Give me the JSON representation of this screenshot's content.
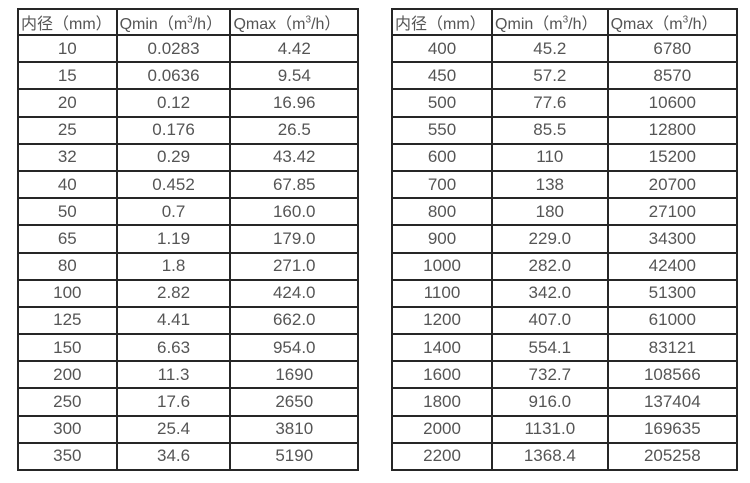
{
  "page": {
    "background": "#ffffff"
  },
  "table_style": {
    "border_color": "#262626",
    "text_color": "#555555"
  },
  "tables": [
    {
      "name": "flow-rate-table-small-diameters",
      "headers": [
        "内径（mm）",
        "Qmin（m³/h）",
        "Qmax（m³/h）"
      ],
      "rows": [
        [
          "10",
          "0.0283",
          "4.42"
        ],
        [
          "15",
          "0.0636",
          "9.54"
        ],
        [
          "20",
          "0.12",
          "16.96"
        ],
        [
          "25",
          "0.176",
          "26.5"
        ],
        [
          "32",
          "0.29",
          "43.42"
        ],
        [
          "40",
          "0.452",
          "67.85"
        ],
        [
          "50",
          "0.7",
          "160.0"
        ],
        [
          "65",
          "1.19",
          "179.0"
        ],
        [
          "80",
          "1.8",
          "271.0"
        ],
        [
          "100",
          "2.82",
          "424.0"
        ],
        [
          "125",
          "4.41",
          "662.0"
        ],
        [
          "150",
          "6.63",
          "954.0"
        ],
        [
          "200",
          "11.3",
          "1690"
        ],
        [
          "250",
          "17.6",
          "2650"
        ],
        [
          "300",
          "25.4",
          "3810"
        ],
        [
          "350",
          "34.6",
          "5190"
        ]
      ]
    },
    {
      "name": "flow-rate-table-large-diameters",
      "headers": [
        "内径（mm）",
        "Qmin（m³/h）",
        "Qmax（m³/h）"
      ],
      "rows": [
        [
          "400",
          "45.2",
          "6780"
        ],
        [
          "450",
          "57.2",
          "8570"
        ],
        [
          "500",
          "77.6",
          "10600"
        ],
        [
          "550",
          "85.5",
          "12800"
        ],
        [
          "600",
          "110",
          "15200"
        ],
        [
          "700",
          "138",
          "20700"
        ],
        [
          "800",
          "180",
          "27100"
        ],
        [
          "900",
          "229.0",
          "34300"
        ],
        [
          "1000",
          "282.0",
          "42400"
        ],
        [
          "1100",
          "342.0",
          "51300"
        ],
        [
          "1200",
          "407.0",
          "61000"
        ],
        [
          "1400",
          "554.1",
          "83121"
        ],
        [
          "1600",
          "732.7",
          "108566"
        ],
        [
          "1800",
          "916.0",
          "137404"
        ],
        [
          "2000",
          "1131.0",
          "169635"
        ],
        [
          "2200",
          "1368.4",
          "205258"
        ]
      ]
    }
  ]
}
